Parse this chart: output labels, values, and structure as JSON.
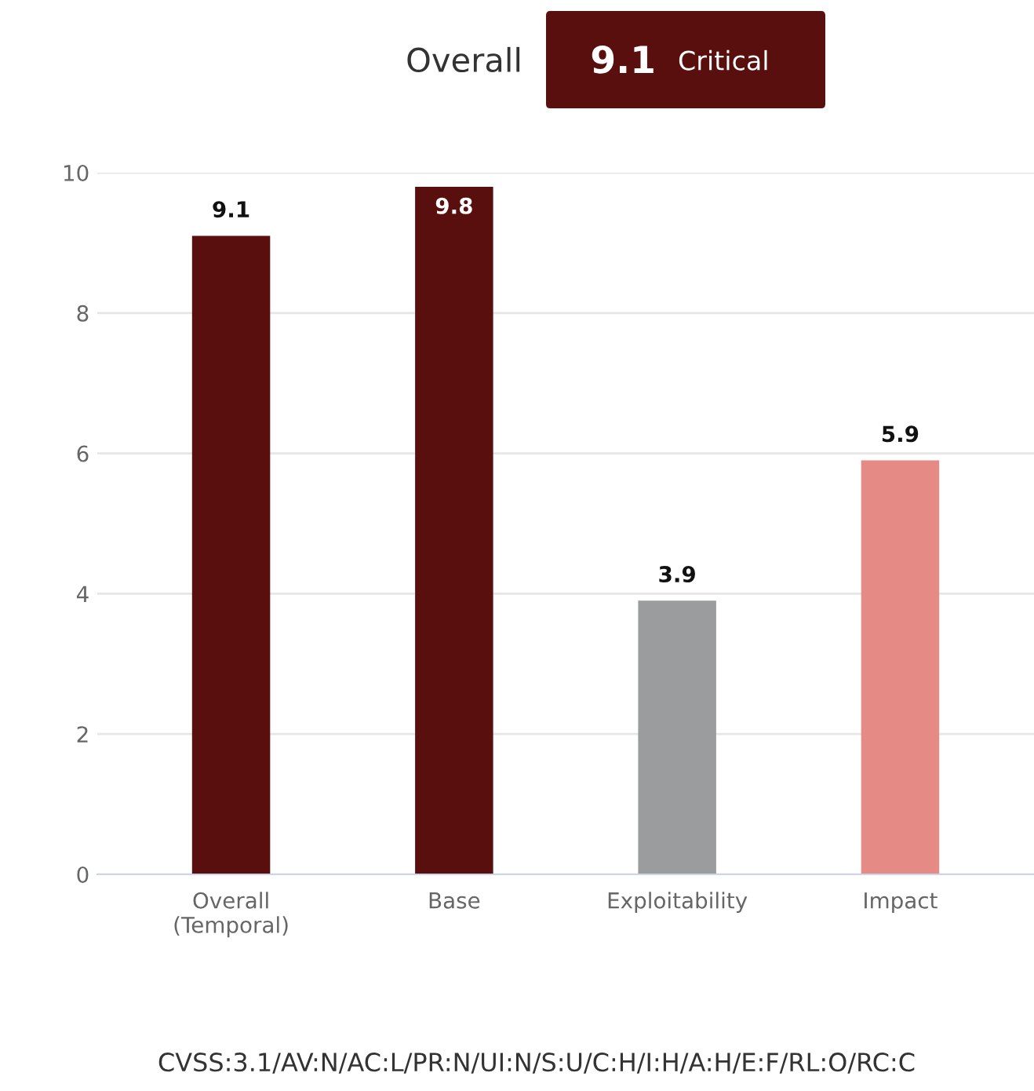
{
  "chart_data": {
    "type": "bar",
    "title": "Overall",
    "categories": [
      "Overall\n(Temporal)",
      "Base",
      "Exploitability",
      "Impact"
    ],
    "values": [
      9.1,
      9.8,
      3.9,
      5.9
    ],
    "colors": [
      "#5a0f0f",
      "#5a0f0f",
      "#9b9c9d",
      "#e58a85"
    ],
    "ylim": [
      0,
      10
    ],
    "yticks": [
      0,
      2,
      4,
      6,
      8,
      10
    ],
    "grid": "y",
    "data_labels": true,
    "annotations": [
      "9.1",
      "Critical",
      "CVSS:3.1/AV:N/AC:L/PR:N/UI:N/S:U/C:H/I:H/A:H/E:F/RL:O/RC:C"
    ]
  }
}
